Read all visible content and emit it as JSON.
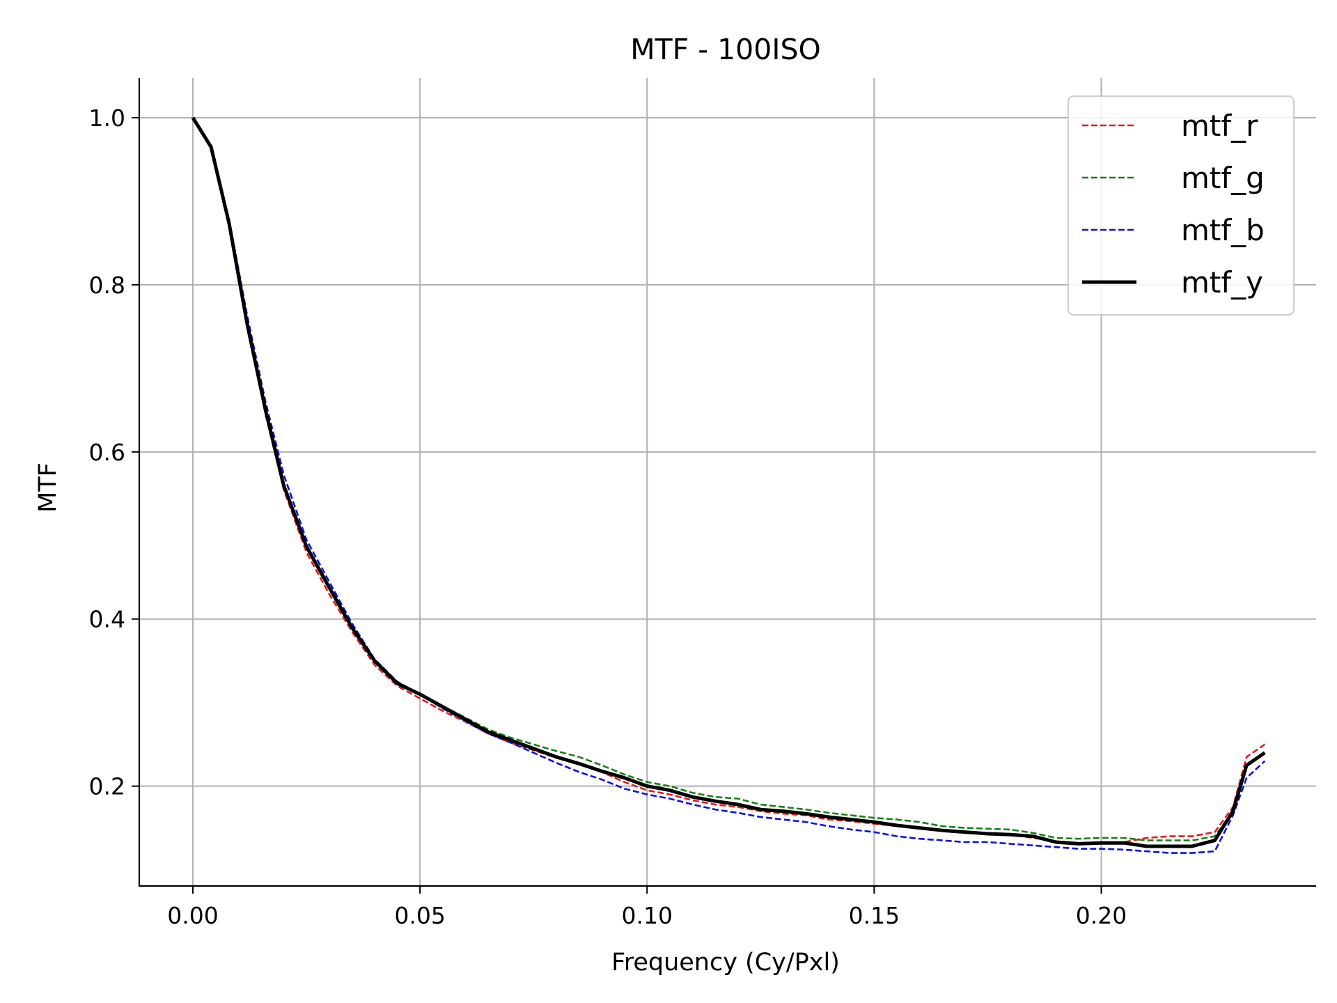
{
  "chart_data": {
    "type": "line",
    "title": "MTF - 100ISO",
    "xlabel": "Frequency (Cy/Pxl)",
    "ylabel": "MTF",
    "xlim": [
      -0.0118,
      0.2473
    ],
    "ylim": [
      0.0805,
      1.0475
    ],
    "grid": true,
    "legend_position": "top-right",
    "x_ticks": [
      0.0,
      0.05,
      0.1,
      0.15,
      0.2
    ],
    "x_tick_labels": [
      "0.00",
      "0.05",
      "0.10",
      "0.15",
      "0.20"
    ],
    "y_ticks": [
      0.2,
      0.4,
      0.6,
      0.8,
      1.0
    ],
    "y_tick_labels": [
      "0.2",
      "0.4",
      "0.6",
      "0.8",
      "1.0"
    ],
    "series": [
      {
        "name": "mtf_r",
        "color": "#e41a1c",
        "style": "dashed",
        "x": [
          0,
          0.004,
          0.008,
          0.012,
          0.016,
          0.02,
          0.025,
          0.03,
          0.035,
          0.04,
          0.045,
          0.05,
          0.055,
          0.06,
          0.065,
          0.07,
          0.075,
          0.08,
          0.085,
          0.09,
          0.095,
          0.1,
          0.105,
          0.11,
          0.115,
          0.12,
          0.125,
          0.13,
          0.135,
          0.14,
          0.145,
          0.15,
          0.155,
          0.16,
          0.165,
          0.17,
          0.175,
          0.18,
          0.185,
          0.19,
          0.195,
          0.2,
          0.205,
          0.21,
          0.215,
          0.22,
          0.225,
          0.229,
          0.232,
          0.236
        ],
        "y": [
          1.0,
          0.965,
          0.87,
          0.75,
          0.645,
          0.555,
          0.48,
          0.43,
          0.385,
          0.345,
          0.32,
          0.305,
          0.29,
          0.277,
          0.263,
          0.252,
          0.243,
          0.234,
          0.226,
          0.217,
          0.205,
          0.195,
          0.19,
          0.183,
          0.178,
          0.175,
          0.17,
          0.167,
          0.165,
          0.16,
          0.158,
          0.155,
          0.152,
          0.15,
          0.147,
          0.145,
          0.143,
          0.142,
          0.138,
          0.134,
          0.132,
          0.132,
          0.133,
          0.138,
          0.14,
          0.14,
          0.145,
          0.175,
          0.235,
          0.25
        ]
      },
      {
        "name": "mtf_g",
        "color": "#1a7f1a",
        "style": "dashed",
        "x": [
          0,
          0.004,
          0.008,
          0.012,
          0.016,
          0.02,
          0.025,
          0.03,
          0.035,
          0.04,
          0.045,
          0.05,
          0.055,
          0.06,
          0.065,
          0.07,
          0.075,
          0.08,
          0.085,
          0.09,
          0.095,
          0.1,
          0.105,
          0.11,
          0.115,
          0.12,
          0.125,
          0.13,
          0.135,
          0.14,
          0.145,
          0.15,
          0.155,
          0.16,
          0.165,
          0.17,
          0.175,
          0.18,
          0.185,
          0.19,
          0.195,
          0.2,
          0.205,
          0.21,
          0.215,
          0.22,
          0.225,
          0.229,
          0.232,
          0.236
        ],
        "y": [
          1.0,
          0.965,
          0.875,
          0.755,
          0.648,
          0.56,
          0.488,
          0.438,
          0.392,
          0.35,
          0.325,
          0.31,
          0.296,
          0.282,
          0.268,
          0.258,
          0.25,
          0.242,
          0.235,
          0.225,
          0.214,
          0.205,
          0.2,
          0.192,
          0.187,
          0.185,
          0.178,
          0.175,
          0.172,
          0.168,
          0.165,
          0.162,
          0.16,
          0.157,
          0.152,
          0.15,
          0.149,
          0.148,
          0.144,
          0.138,
          0.137,
          0.138,
          0.138,
          0.135,
          0.135,
          0.135,
          0.14,
          0.17,
          0.225,
          0.24
        ]
      },
      {
        "name": "mtf_b",
        "color": "#0a14d6",
        "style": "dashed",
        "x": [
          0,
          0.004,
          0.008,
          0.012,
          0.016,
          0.02,
          0.025,
          0.03,
          0.035,
          0.04,
          0.045,
          0.05,
          0.055,
          0.06,
          0.065,
          0.07,
          0.075,
          0.08,
          0.085,
          0.09,
          0.095,
          0.1,
          0.105,
          0.11,
          0.115,
          0.12,
          0.125,
          0.13,
          0.135,
          0.14,
          0.145,
          0.15,
          0.155,
          0.16,
          0.165,
          0.17,
          0.175,
          0.18,
          0.185,
          0.19,
          0.195,
          0.2,
          0.205,
          0.21,
          0.215,
          0.22,
          0.225,
          0.229,
          0.232,
          0.236
        ],
        "y": [
          1.0,
          0.965,
          0.878,
          0.762,
          0.66,
          0.573,
          0.495,
          0.445,
          0.395,
          0.352,
          0.325,
          0.31,
          0.293,
          0.278,
          0.263,
          0.252,
          0.24,
          0.228,
          0.217,
          0.208,
          0.197,
          0.19,
          0.185,
          0.178,
          0.172,
          0.168,
          0.163,
          0.16,
          0.157,
          0.152,
          0.148,
          0.145,
          0.14,
          0.137,
          0.135,
          0.133,
          0.133,
          0.131,
          0.129,
          0.127,
          0.125,
          0.125,
          0.124,
          0.122,
          0.12,
          0.12,
          0.122,
          0.165,
          0.21,
          0.23
        ]
      },
      {
        "name": "mtf_y",
        "color": "#000000",
        "style": "solid",
        "x": [
          0,
          0.004,
          0.008,
          0.012,
          0.016,
          0.02,
          0.025,
          0.03,
          0.035,
          0.04,
          0.045,
          0.05,
          0.055,
          0.06,
          0.065,
          0.07,
          0.075,
          0.08,
          0.085,
          0.09,
          0.095,
          0.1,
          0.105,
          0.11,
          0.115,
          0.12,
          0.125,
          0.13,
          0.135,
          0.14,
          0.145,
          0.15,
          0.155,
          0.16,
          0.165,
          0.17,
          0.175,
          0.18,
          0.185,
          0.19,
          0.195,
          0.2,
          0.205,
          0.21,
          0.215,
          0.22,
          0.225,
          0.229,
          0.232,
          0.236
        ],
        "y": [
          1.0,
          0.965,
          0.873,
          0.752,
          0.65,
          0.56,
          0.487,
          0.438,
          0.39,
          0.35,
          0.323,
          0.31,
          0.295,
          0.28,
          0.265,
          0.255,
          0.245,
          0.235,
          0.227,
          0.218,
          0.21,
          0.2,
          0.195,
          0.187,
          0.182,
          0.178,
          0.172,
          0.17,
          0.167,
          0.163,
          0.16,
          0.157,
          0.153,
          0.15,
          0.147,
          0.145,
          0.143,
          0.142,
          0.14,
          0.133,
          0.131,
          0.132,
          0.132,
          0.128,
          0.128,
          0.128,
          0.135,
          0.17,
          0.225,
          0.24
        ]
      }
    ]
  }
}
